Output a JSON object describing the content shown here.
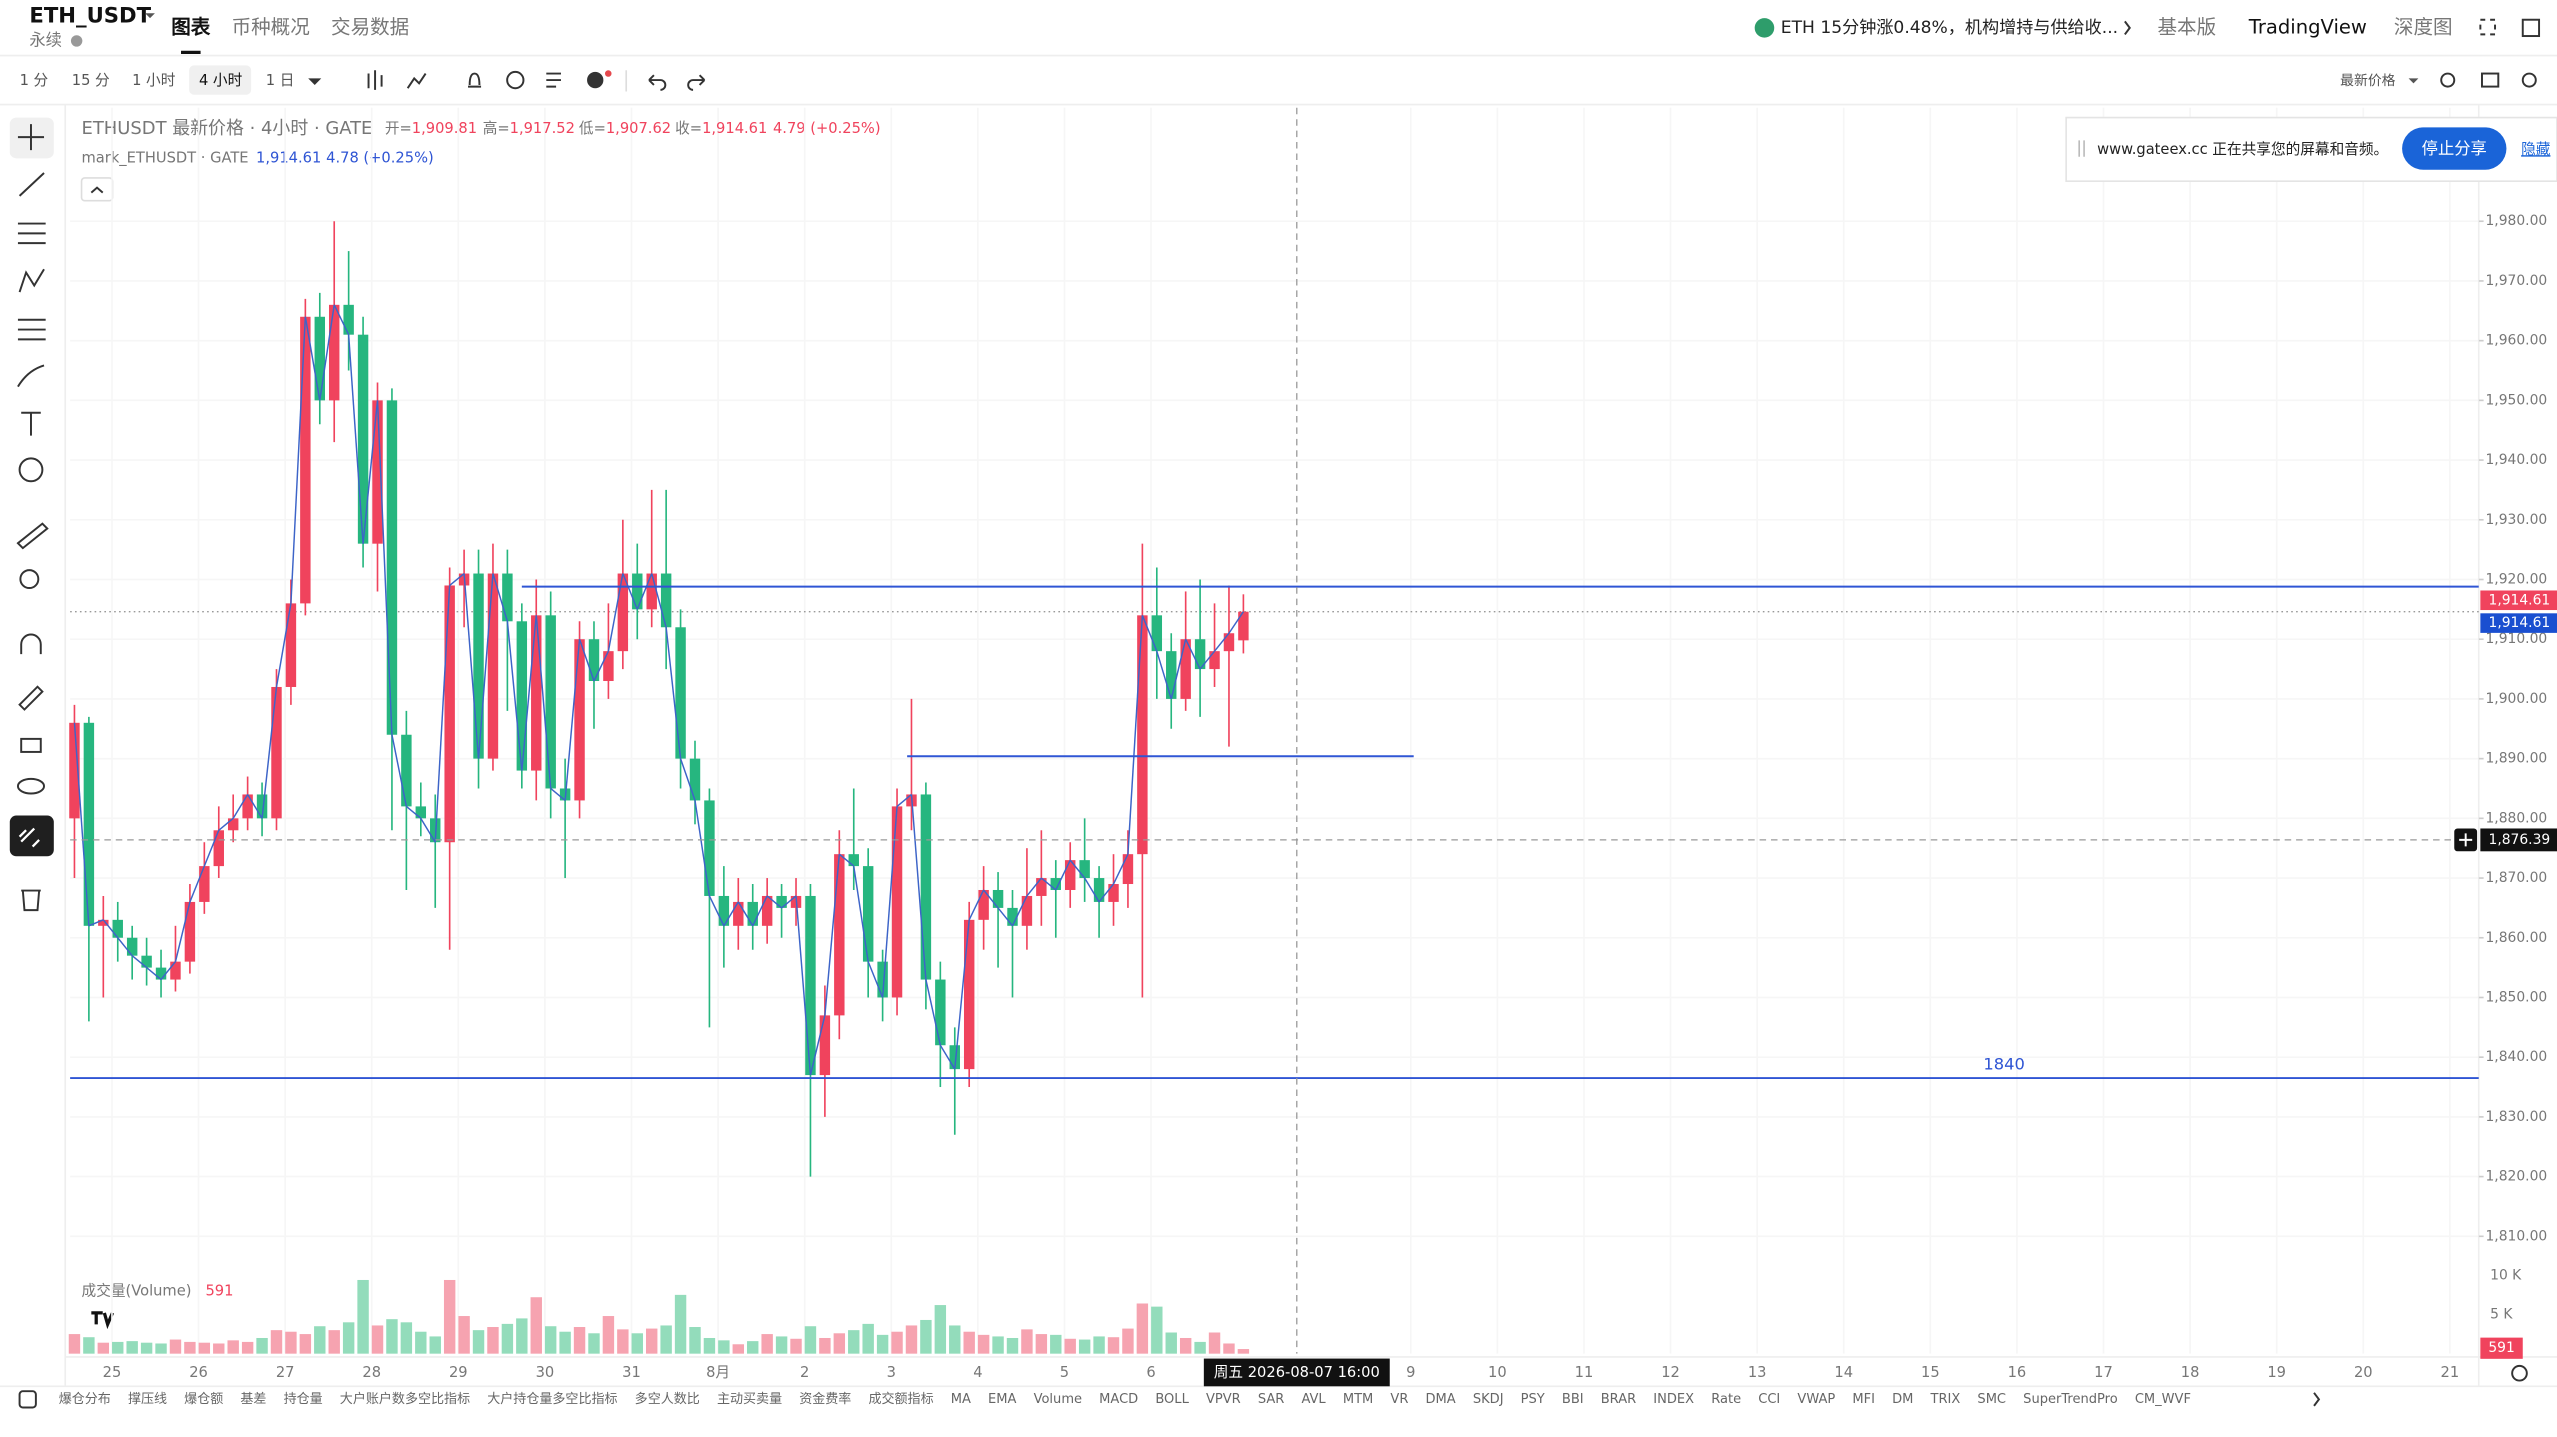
{
  "header": {
    "symbol": "ETH_USDT",
    "subtitle": "永续",
    "tabs": [
      "图表",
      "币种概况",
      "交易数据"
    ],
    "news": "ETH 15分钟涨0.48%，机构增持与供给收...",
    "modes": [
      "基本版",
      "TradingView",
      "深度图"
    ]
  },
  "toolbar": {
    "intervals": [
      "1 分",
      "15 分",
      "1 小时",
      "4 小时",
      "1 日"
    ],
    "price_source": "最新价格"
  },
  "share_banner": {
    "text": "www.gateex.cc 正在共享您的屏幕和音频。",
    "stop": "停止分享",
    "hide": "隐藏"
  },
  "chart_data": {
    "type": "candlestick",
    "title": "ETHUSDT 最新价格 · 4小时 · GATE",
    "legend": [
      {
        "key": "开=",
        "value": "1,909.81"
      },
      {
        "key": "高=",
        "value": "1,917.52"
      },
      {
        "key": "低=",
        "value": "1,907.62"
      },
      {
        "key": "收=",
        "value": "1,914.61"
      }
    ],
    "change": "4.79 (+0.25%)",
    "mark_legend": "mark_ETHUSDT · GATE",
    "mark_value": "1,914.61",
    "mark_change": "4.78 (+0.25%)",
    "up_color": "#f0435d",
    "down_color": "#26b67f",
    "up_volume_color": "#f6a3b0",
    "down_volume_color": "#93dcbb",
    "line_color": "#3d64c8",
    "drawing_color": "#2f55d4",
    "grid": true,
    "ohlc": [
      [
        1880,
        1899,
        1870,
        1896
      ],
      [
        1896,
        1897,
        1846,
        1862
      ],
      [
        1862,
        1867,
        1850,
        1863
      ],
      [
        1863,
        1866,
        1856,
        1860
      ],
      [
        1860,
        1862,
        1853,
        1857
      ],
      [
        1857,
        1860,
        1852,
        1855
      ],
      [
        1855,
        1858,
        1850,
        1853
      ],
      [
        1853,
        1862,
        1851,
        1856
      ],
      [
        1856,
        1869,
        1854,
        1866
      ],
      [
        1866,
        1876,
        1864,
        1872
      ],
      [
        1872,
        1882,
        1870,
        1878
      ],
      [
        1878,
        1884,
        1876,
        1880
      ],
      [
        1880,
        1887,
        1878,
        1884
      ],
      [
        1884,
        1886,
        1877,
        1880
      ],
      [
        1880,
        1905,
        1878,
        1902
      ],
      [
        1902,
        1920,
        1899,
        1916
      ],
      [
        1916,
        1967,
        1914,
        1964
      ],
      [
        1964,
        1968,
        1946,
        1950
      ],
      [
        1950,
        1980,
        1943,
        1966
      ],
      [
        1966,
        1975,
        1955,
        1961
      ],
      [
        1961,
        1964,
        1922,
        1926
      ],
      [
        1926,
        1953,
        1918,
        1950
      ],
      [
        1950,
        1952,
        1878,
        1894
      ],
      [
        1894,
        1898,
        1868,
        1882
      ],
      [
        1882,
        1886,
        1877,
        1880
      ],
      [
        1880,
        1884,
        1865,
        1876
      ],
      [
        1876,
        1922,
        1858,
        1919
      ],
      [
        1919,
        1925,
        1912,
        1921
      ],
      [
        1921,
        1925,
        1885,
        1890
      ],
      [
        1890,
        1926,
        1888,
        1921
      ],
      [
        1921,
        1925,
        1898,
        1913
      ],
      [
        1913,
        1916,
        1885,
        1888
      ],
      [
        1888,
        1920,
        1883,
        1914
      ],
      [
        1914,
        1918,
        1880,
        1885
      ],
      [
        1885,
        1890,
        1870,
        1883
      ],
      [
        1883,
        1913,
        1880,
        1910
      ],
      [
        1910,
        1913,
        1895,
        1903
      ],
      [
        1903,
        1916,
        1900,
        1908
      ],
      [
        1908,
        1930,
        1905,
        1921
      ],
      [
        1921,
        1926,
        1910,
        1915
      ],
      [
        1915,
        1935,
        1912,
        1921
      ],
      [
        1921,
        1935,
        1905,
        1912
      ],
      [
        1912,
        1915,
        1885,
        1890
      ],
      [
        1890,
        1893,
        1879,
        1883
      ],
      [
        1883,
        1885,
        1845,
        1867
      ],
      [
        1867,
        1872,
        1855,
        1862
      ],
      [
        1862,
        1870,
        1858,
        1866
      ],
      [
        1866,
        1869,
        1858,
        1862
      ],
      [
        1862,
        1870,
        1859,
        1867
      ],
      [
        1867,
        1869,
        1860,
        1865
      ],
      [
        1865,
        1870,
        1862,
        1867
      ],
      [
        1867,
        1869,
        1820,
        1837
      ],
      [
        1837,
        1852,
        1830,
        1847
      ],
      [
        1847,
        1878,
        1843,
        1874
      ],
      [
        1874,
        1885,
        1868,
        1872
      ],
      [
        1872,
        1875,
        1850,
        1856
      ],
      [
        1856,
        1858,
        1846,
        1850
      ],
      [
        1850,
        1885,
        1847,
        1882
      ],
      [
        1882,
        1900,
        1878,
        1884
      ],
      [
        1884,
        1886,
        1848,
        1853
      ],
      [
        1853,
        1856,
        1835,
        1842
      ],
      [
        1842,
        1845,
        1827,
        1838
      ],
      [
        1838,
        1866,
        1835,
        1863
      ],
      [
        1863,
        1872,
        1858,
        1868
      ],
      [
        1868,
        1871,
        1855,
        1865
      ],
      [
        1865,
        1868,
        1850,
        1862
      ],
      [
        1862,
        1875,
        1858,
        1867
      ],
      [
        1867,
        1878,
        1862,
        1870
      ],
      [
        1870,
        1873,
        1860,
        1868
      ],
      [
        1868,
        1876,
        1865,
        1873
      ],
      [
        1873,
        1880,
        1866,
        1870
      ],
      [
        1870,
        1872,
        1860,
        1866
      ],
      [
        1866,
        1874,
        1862,
        1869
      ],
      [
        1869,
        1878,
        1865,
        1874
      ],
      [
        1874,
        1926,
        1850,
        1914
      ],
      [
        1914,
        1922,
        1900,
        1908
      ],
      [
        1908,
        1911,
        1895,
        1900
      ],
      [
        1900,
        1918,
        1898,
        1910
      ],
      [
        1910,
        1920,
        1897,
        1905
      ],
      [
        1905,
        1916,
        1902,
        1908
      ],
      [
        1908,
        1919,
        1892,
        1911
      ],
      [
        1909.81,
        1917.52,
        1907.62,
        1914.61
      ]
    ],
    "volume_title": "成交量(Volume)",
    "volumes": [
      2500,
      2100,
      1400,
      1500,
      1600,
      1400,
      1300,
      1800,
      1500,
      1400,
      1300,
      1700,
      1500,
      2000,
      3000,
      2800,
      2500,
      3500,
      3000,
      4000,
      9400,
      3600,
      4400,
      4000,
      2800,
      2200,
      9400,
      4800,
      3000,
      3400,
      3800,
      4500,
      7200,
      3500,
      2800,
      3400,
      2600,
      4800,
      3100,
      2600,
      3200,
      3600,
      7500,
      3400,
      2000,
      1700,
      1200,
      1600,
      2500,
      2200,
      1900,
      3500,
      2000,
      2600,
      3000,
      3800,
      2400,
      2800,
      3600,
      4300,
      6200,
      3600,
      2800,
      2400,
      2200,
      2000,
      3100,
      2500,
      2400,
      1900,
      1800,
      2200,
      2100,
      3200,
      6400,
      6000,
      2700,
      2000,
      1500,
      2700,
      1300,
      591
    ],
    "vlim": [
      0,
      10400
    ],
    "vticks": [
      {
        "value": 10000,
        "label": "10 K"
      },
      {
        "value": 5000,
        "label": "5 K"
      }
    ],
    "xlim": [
      -0.3,
      166.6
    ],
    "xticks": [
      {
        "value": 2.6,
        "label": "25"
      },
      {
        "value": 8.6,
        "label": "26"
      },
      {
        "value": 14.6,
        "label": "27"
      },
      {
        "value": 20.6,
        "label": "28"
      },
      {
        "value": 26.6,
        "label": "29"
      },
      {
        "value": 32.6,
        "label": "30"
      },
      {
        "value": 38.6,
        "label": "31"
      },
      {
        "value": 44.6,
        "label": "8月"
      },
      {
        "value": 50.6,
        "label": "2"
      },
      {
        "value": 56.6,
        "label": "3"
      },
      {
        "value": 62.6,
        "label": "4"
      },
      {
        "value": 68.6,
        "label": "5"
      },
      {
        "value": 74.6,
        "label": "6"
      },
      {
        "value": 92.6,
        "label": "9"
      },
      {
        "value": 98.6,
        "label": "10"
      },
      {
        "value": 104.6,
        "label": "11"
      },
      {
        "value": 110.6,
        "label": "12"
      },
      {
        "value": 116.6,
        "label": "13"
      },
      {
        "value": 122.6,
        "label": "14"
      },
      {
        "value": 128.6,
        "label": "15"
      },
      {
        "value": 134.6,
        "label": "16"
      },
      {
        "value": 140.6,
        "label": "17"
      },
      {
        "value": 146.6,
        "label": "18"
      },
      {
        "value": 152.6,
        "label": "19"
      },
      {
        "value": 158.6,
        "label": "20"
      },
      {
        "value": 164.6,
        "label": "21"
      }
    ],
    "ylim": [
      1804,
      1999
    ],
    "yticks": [
      {
        "value": 1980,
        "label": "1,980.00"
      },
      {
        "value": 1970,
        "label": "1,970.00"
      },
      {
        "value": 1960,
        "label": "1,960.00"
      },
      {
        "value": 1950,
        "label": "1,950.00"
      },
      {
        "value": 1940,
        "label": "1,940.00"
      },
      {
        "value": 1930,
        "label": "1,930.00"
      },
      {
        "value": 1920,
        "label": "1,920.00"
      },
      {
        "value": 1910,
        "label": "1,910.00"
      },
      {
        "value": 1900,
        "label": "1,900.00"
      },
      {
        "value": 1890,
        "label": "1,890.00"
      },
      {
        "value": 1880,
        "label": "1,880.00"
      },
      {
        "value": 1870,
        "label": "1,870.00"
      },
      {
        "value": 1860,
        "label": "1,860.00"
      },
      {
        "value": 1850,
        "label": "1,850.00"
      },
      {
        "value": 1840,
        "label": "1,840.00"
      },
      {
        "value": 1830,
        "label": "1,830.00"
      },
      {
        "value": 1820,
        "label": "1,820.00"
      },
      {
        "value": 1810,
        "label": "1,810.00"
      }
    ],
    "last_price": {
      "value": 1914.61,
      "label": "1,914.61"
    },
    "mark_price": {
      "value": 1914.61,
      "label": "1,914.61"
    },
    "crosshair_price": {
      "value": 1876.39,
      "label": "1,876.39"
    },
    "crosshair_time": {
      "value": 84.7,
      "label": "周五 2026-08-07  16:00"
    },
    "drawings": [
      {
        "price": 1918.8,
        "from": 31
      },
      {
        "price": 1890.4,
        "from": 57.7,
        "to": 92.8
      },
      {
        "price": 1836.5,
        "label": "1840"
      }
    ]
  },
  "indicators": [
    "爆仓分布",
    "撑压线",
    "爆仓额",
    "基差",
    "持仓量",
    "大户账户数多空比指标",
    "大户持仓量多空比指标",
    "多空人数比",
    "主动买卖量",
    "资金费率",
    "成交额指标",
    "MA",
    "EMA",
    "Volume",
    "MACD",
    "BOLL",
    "VPVR",
    "SAR",
    "AVL",
    "MTM",
    "VR",
    "DMA",
    "SKDJ",
    "PSY",
    "BBI",
    "BRAR",
    "INDEX",
    "Rate",
    "CCI",
    "VWAP",
    "MFI",
    "DM",
    "TRIX",
    "SMC",
    "SuperTrendPro",
    "CM_WVF"
  ]
}
